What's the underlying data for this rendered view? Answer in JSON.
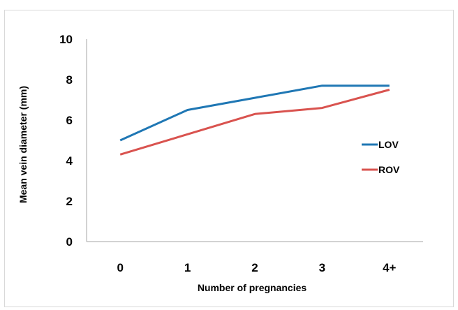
{
  "chart_data": {
    "type": "line",
    "title": "",
    "xlabel": "Number of pregnancies",
    "ylabel": "Mean vein diameter  (mm)",
    "categories": [
      "0",
      "1",
      "2",
      "3",
      "4+"
    ],
    "ylim": [
      0,
      10
    ],
    "yticks": [
      "0",
      "2",
      "4",
      "6",
      "8",
      "10"
    ],
    "grid": false,
    "legend_position": "right",
    "series": [
      {
        "name": "LOV",
        "color": "#1f77b4",
        "values": [
          5.0,
          6.5,
          7.1,
          7.7,
          7.7
        ]
      },
      {
        "name": "ROV",
        "color": "#d9534f",
        "values": [
          4.3,
          5.3,
          6.3,
          6.6,
          7.5
        ]
      }
    ]
  }
}
